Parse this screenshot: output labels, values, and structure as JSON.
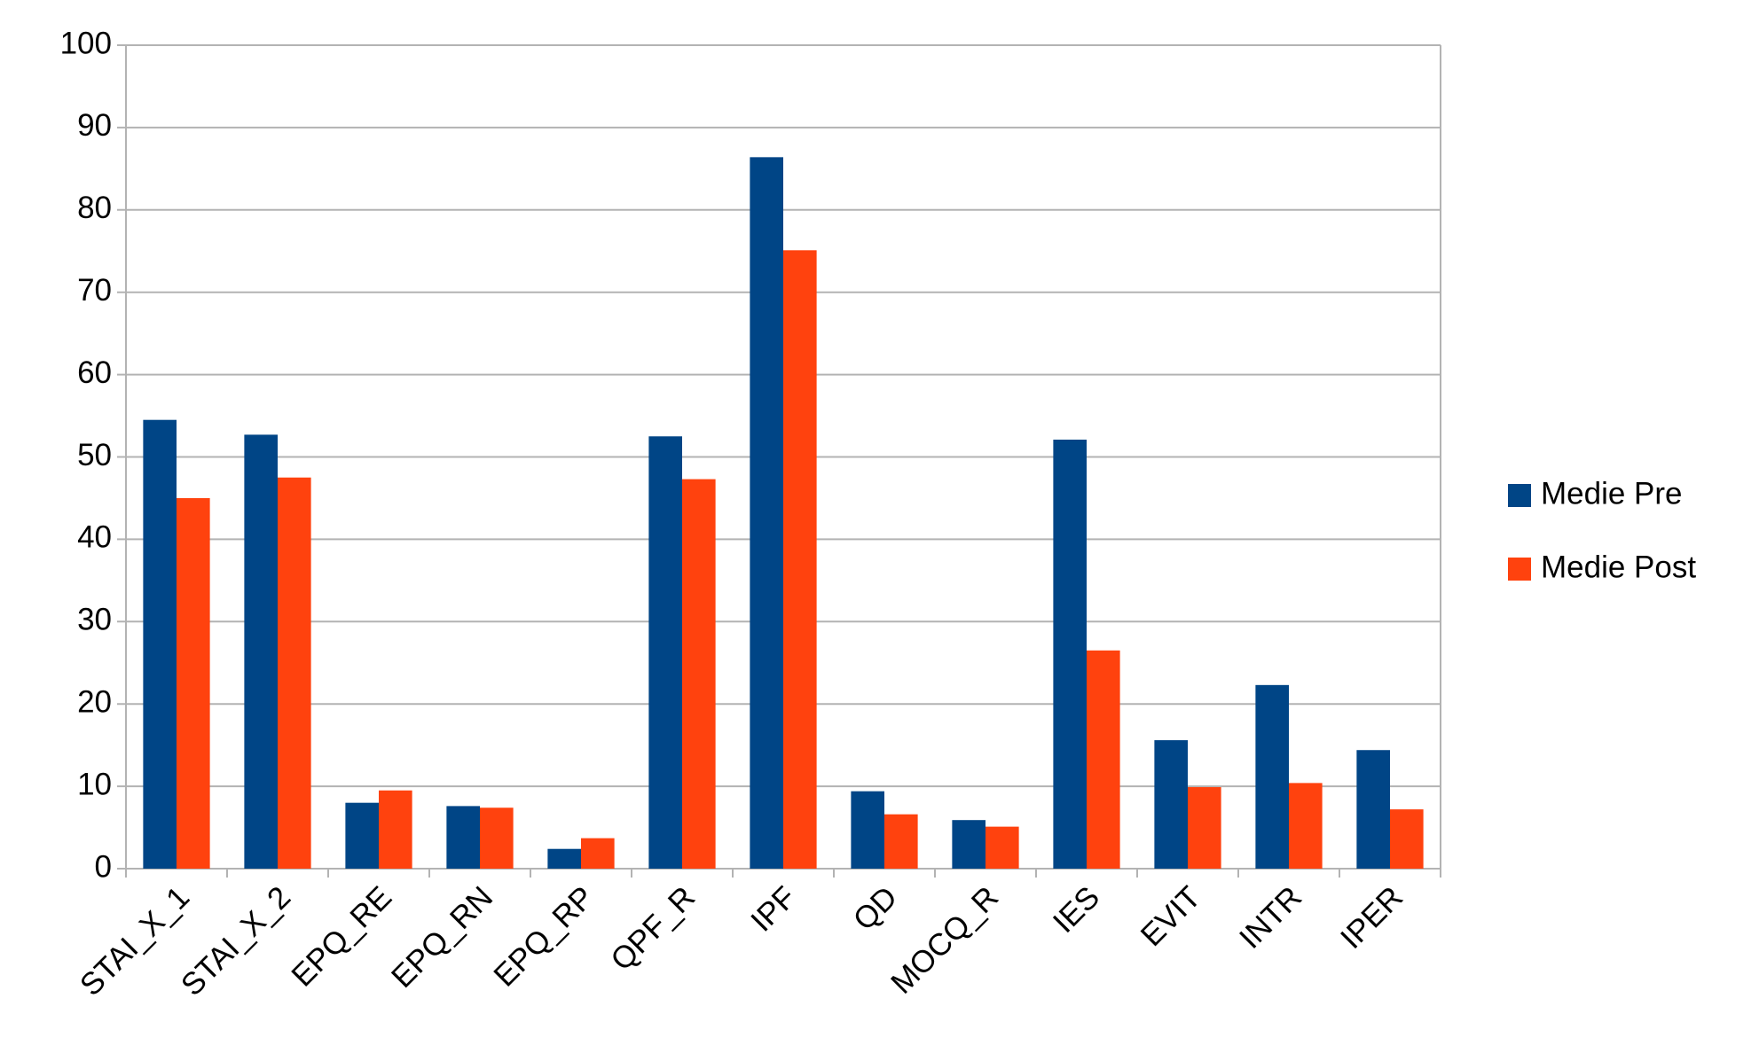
{
  "chart_data": {
    "type": "bar",
    "categories": [
      "STAI_X_1",
      "STAI_X_2",
      "EPQ_RE",
      "EPQ_RN",
      "EPQ_RP",
      "QPF_R",
      "IPF",
      "QD",
      "MOCQ_R",
      "IES",
      "EVIT",
      "INTR",
      "IPER"
    ],
    "series": [
      {
        "name": "Medie Pre",
        "color": "#004586",
        "values": [
          54.5,
          52.7,
          8,
          7.6,
          2.4,
          52.5,
          86.4,
          9.4,
          5.9,
          52.1,
          15.6,
          22.3,
          14.4
        ]
      },
      {
        "name": "Medie Post",
        "color": "#ff420e",
        "values": [
          45,
          47.5,
          9.5,
          7.4,
          3.7,
          47.3,
          75.1,
          6.6,
          5.1,
          26.5,
          9.9,
          10.4,
          7.2
        ]
      }
    ],
    "ylim": [
      0,
      100
    ],
    "yticks": [
      0,
      10,
      20,
      30,
      40,
      50,
      60,
      70,
      80,
      90,
      100
    ],
    "grid": true,
    "legend": "right"
  }
}
